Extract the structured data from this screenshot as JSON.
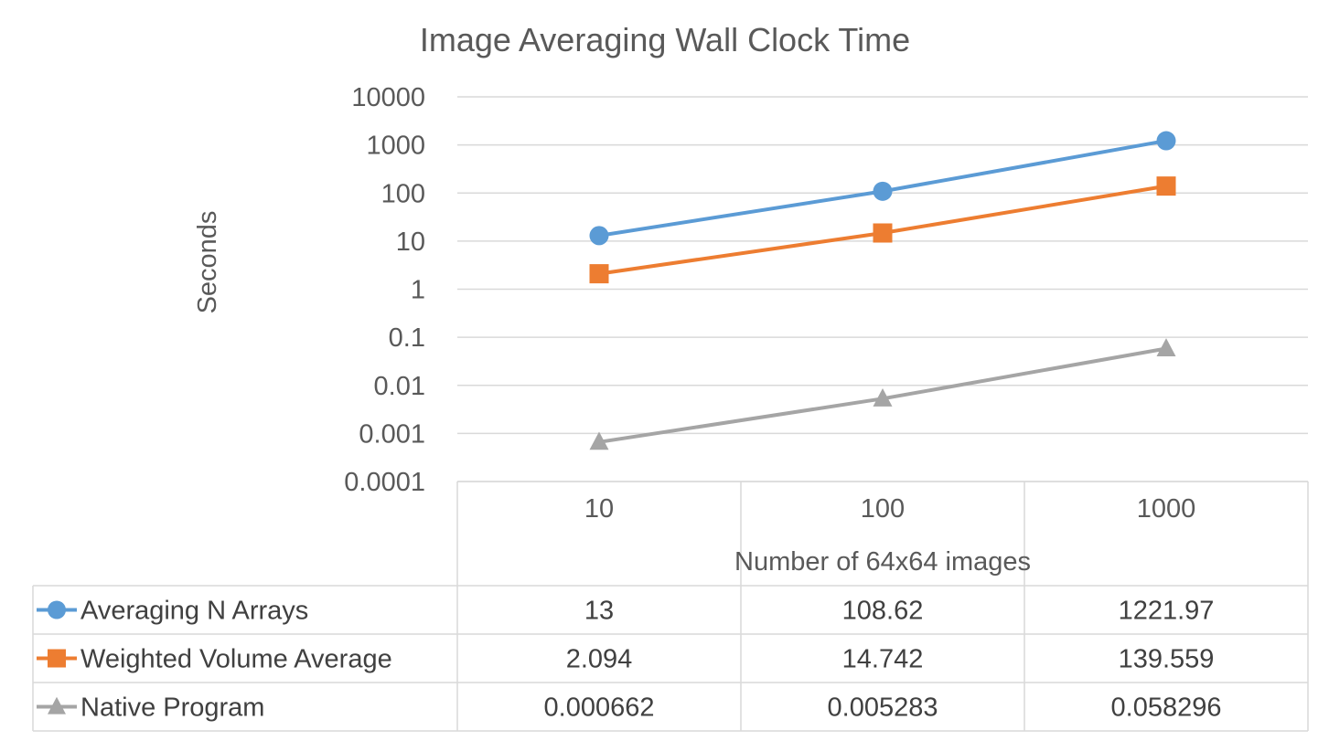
{
  "chart_data": {
    "type": "line",
    "title": "Image Averaging Wall Clock Time",
    "xlabel": "Number of 64x64 images",
    "ylabel": "Seconds",
    "x_scale": "category",
    "y_scale": "log",
    "categories": [
      "10",
      "100",
      "1000"
    ],
    "ylim": [
      0.0001,
      10000
    ],
    "y_ticks": [
      "10000",
      "1000",
      "100",
      "10",
      "1",
      "0.1",
      "0.01",
      "0.001",
      "0.0001"
    ],
    "grid": true,
    "legend": "data table",
    "series": [
      {
        "name": "Averaging N Arrays",
        "values": [
          13,
          108.62,
          1221.97
        ],
        "value_labels": [
          "13",
          "108.62",
          "1221.97"
        ],
        "color": "#5B9BD5",
        "marker": "circle"
      },
      {
        "name": "Weighted Volume Average",
        "values": [
          2.094,
          14.742,
          139.559
        ],
        "value_labels": [
          "2.094",
          "14.742",
          "139.559"
        ],
        "color": "#ED7D31",
        "marker": "square"
      },
      {
        "name": "Native Program",
        "values": [
          0.000662,
          0.005283,
          0.058296
        ],
        "value_labels": [
          "0.000662",
          "0.005283",
          "0.058296"
        ],
        "color": "#A5A5A5",
        "marker": "triangle"
      }
    ]
  },
  "colors": {
    "grid": "#D9D9D9",
    "text": "#595959"
  }
}
